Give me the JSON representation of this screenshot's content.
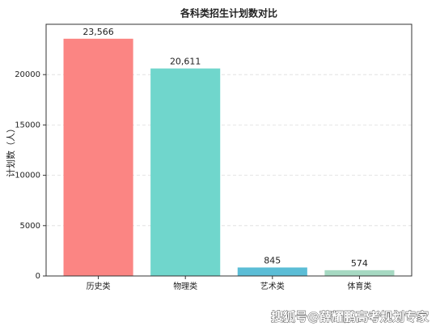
{
  "chart_data": {
    "type": "bar",
    "title": "各科类招生计划数对比",
    "ylabel": "计划数（人）",
    "categories": [
      "历史类",
      "物理类",
      "艺术类",
      "体育类"
    ],
    "values": [
      23566,
      20611,
      845,
      574
    ],
    "value_labels": [
      "23,566",
      "20,611",
      "845",
      "574"
    ],
    "colors": [
      "#fb8583",
      "#70d6cc",
      "#5bbdd6",
      "#a6d9c2"
    ],
    "ylim": [
      0,
      25000
    ],
    "yticks": [
      0,
      5000,
      10000,
      15000,
      20000
    ],
    "grid": true,
    "watermark": "搜狐号@薛耀鹏高考规划专家"
  }
}
